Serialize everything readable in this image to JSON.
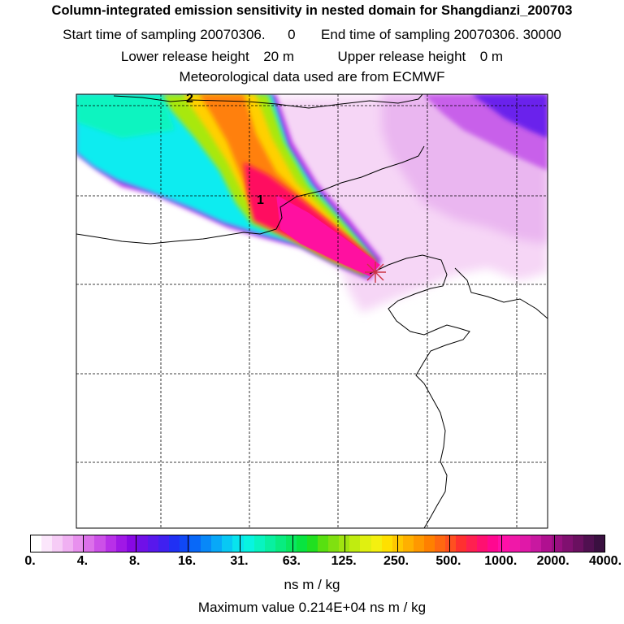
{
  "title": "Column-integrated emission sensitivity in nested domain for Shangdianzi_200703",
  "sampling": {
    "start_label": "Start time of sampling",
    "start_value": "20070306.",
    "start_hour": "0",
    "end_label": "End time of sampling",
    "end_value": "20070306. 30000"
  },
  "release": {
    "lower_label": "Lower release height",
    "lower_value": "20 m",
    "upper_label": "Upper release height",
    "upper_value": "0 m"
  },
  "met_line": "Meteorological data used are from ECMWF",
  "map": {
    "contour_labels": [
      "2",
      "1"
    ],
    "receptor_marker": "star-cross"
  },
  "colorbar": {
    "tick_labels": [
      "0.",
      "4.",
      "8.",
      "16.",
      "31.",
      "63.",
      "125.",
      "250.",
      "500.",
      "1000.",
      "2000.",
      "4000."
    ],
    "colors": [
      "#ffffff",
      "#fbe6fb",
      "#f6ccf6",
      "#f0b0f2",
      "#e890ee",
      "#dc70ea",
      "#cc50e8",
      "#b830e8",
      "#a018e6",
      "#8808e4",
      "#7010e8",
      "#5818ec",
      "#4020f0",
      "#2030f4",
      "#1048f6",
      "#0868f8",
      "#0888f8",
      "#08a8f8",
      "#08c8f4",
      "#08e4ee",
      "#08f4e0",
      "#08f4c0",
      "#08f0a0",
      "#08ec80",
      "#08e860",
      "#08e440",
      "#20e020",
      "#58e010",
      "#80e010",
      "#a0e410",
      "#c0ec10",
      "#e0f010",
      "#f4f010",
      "#ffe000",
      "#ffc800",
      "#ffb000",
      "#ff9800",
      "#ff8000",
      "#ff6810",
      "#ff5020",
      "#ff3030",
      "#ff2050",
      "#ff1070",
      "#ff0890",
      "#ff10a8",
      "#f018a8",
      "#e018a8",
      "#c818a0",
      "#b01090",
      "#981080",
      "#801070",
      "#6a1060",
      "#501050",
      "#3a1040"
    ],
    "units": "ns m / kg"
  },
  "max_line": "Maximum value  0.214E+04 ns m / kg"
}
